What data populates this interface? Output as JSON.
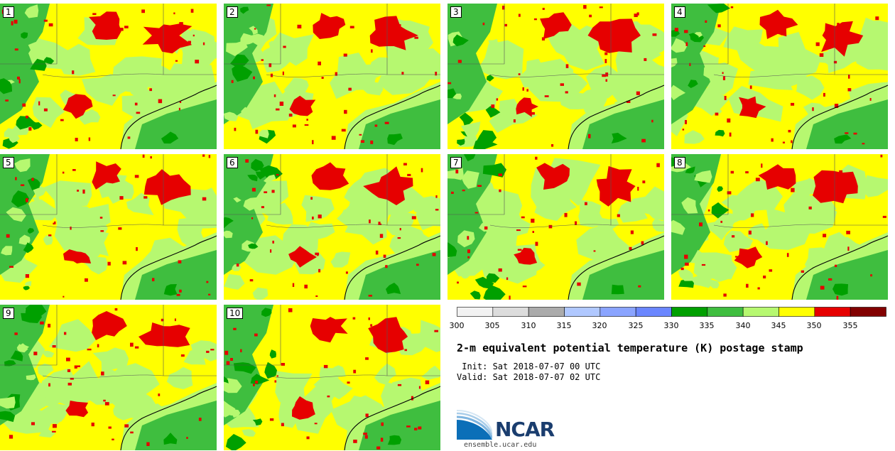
{
  "panels": [
    {
      "label": "1"
    },
    {
      "label": "2"
    },
    {
      "label": "3"
    },
    {
      "label": "4"
    },
    {
      "label": "5"
    },
    {
      "label": "6"
    },
    {
      "label": "7"
    },
    {
      "label": "8"
    },
    {
      "label": "9"
    },
    {
      "label": "10"
    }
  ],
  "colorbar": {
    "ticks": [
      "300",
      "305",
      "310",
      "315",
      "320",
      "325",
      "330",
      "335",
      "340",
      "345",
      "350",
      "355"
    ],
    "colors": [
      "#f2f2f2",
      "#dcdcdc",
      "#ababab",
      "#b0c8ff",
      "#8aa4ff",
      "#6a86ff",
      "#00a000",
      "#3fbe3f",
      "#b6f870",
      "#ffff00",
      "#e60000",
      "#820000"
    ]
  },
  "title": "2-m equivalent potential temperature (K) postage stamp",
  "init": " Init: Sat 2018-07-07 00 UTC",
  "valid": "Valid: Sat 2018-07-07 02 UTC",
  "logo": {
    "name": "NCAR",
    "url": "ensemble.ucar.edu"
  }
}
